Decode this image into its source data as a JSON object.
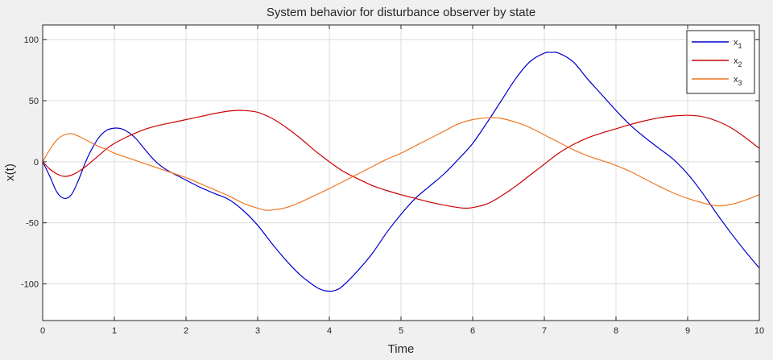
{
  "chart_data": {
    "type": "line",
    "title": "System behavior for disturbance observer by state",
    "xlabel": "Time",
    "ylabel": "x(t)",
    "xlim": [
      0,
      10
    ],
    "ylim": [
      -130,
      112
    ],
    "xticks": [
      0,
      1,
      2,
      3,
      4,
      5,
      6,
      7,
      8,
      9,
      10
    ],
    "yticks": [
      100,
      50,
      0,
      -50,
      -100
    ],
    "xtick_labels": [
      "0",
      "1",
      "2",
      "3",
      "4",
      "5",
      "6",
      "7",
      "8",
      "9",
      "10"
    ],
    "ytick_labels": [
      "100",
      "50",
      "0",
      "-50",
      "-100"
    ],
    "grid": true,
    "legend_position": "top-right",
    "series": [
      {
        "name": "x",
        "subscript": "1",
        "color": "#0000cc",
        "x": [
          0,
          0.1,
          0.2,
          0.3,
          0.4,
          0.5,
          0.6,
          0.7,
          0.8,
          0.9,
          1.0,
          1.1,
          1.2,
          1.3,
          1.4,
          1.5,
          1.6,
          1.7,
          1.8,
          1.9,
          2.0,
          2.2,
          2.4,
          2.6,
          2.8,
          3.0,
          3.2,
          3.4,
          3.6,
          3.8,
          3.9,
          4.0,
          4.1,
          4.2,
          4.4,
          4.6,
          4.8,
          5.0,
          5.2,
          5.4,
          5.6,
          5.8,
          6.0,
          6.2,
          6.4,
          6.6,
          6.8,
          7.0,
          7.1,
          7.2,
          7.4,
          7.6,
          7.8,
          8.0,
          8.2,
          8.4,
          8.6,
          8.8,
          9.0,
          9.2,
          9.4,
          9.6,
          9.8,
          10.0
        ],
        "y": [
          0,
          -12,
          -25,
          -30,
          -27,
          -15,
          0,
          12,
          21,
          26,
          27.5,
          27,
          24,
          19,
          12,
          5,
          -1,
          -5.5,
          -9,
          -12,
          -15,
          -21,
          -26,
          -31,
          -40,
          -52,
          -67,
          -81,
          -93,
          -102,
          -105,
          -106,
          -105,
          -101,
          -89,
          -75,
          -58,
          -43,
          -30,
          -20,
          -10,
          2,
          15,
          32,
          50,
          68,
          82,
          89,
          89.5,
          89,
          82,
          68,
          55,
          42,
          30,
          20,
          11,
          2,
          -10,
          -25,
          -42,
          -58,
          -73,
          -87
        ]
      },
      {
        "name": "x",
        "subscript": "2",
        "color": "#cc0000",
        "x": [
          0,
          0.1,
          0.2,
          0.3,
          0.4,
          0.5,
          0.6,
          0.7,
          0.8,
          0.9,
          1.0,
          1.2,
          1.4,
          1.6,
          1.8,
          2.0,
          2.2,
          2.4,
          2.6,
          2.7,
          2.8,
          3.0,
          3.2,
          3.4,
          3.6,
          3.8,
          4.0,
          4.2,
          4.4,
          4.6,
          4.8,
          5.0,
          5.2,
          5.4,
          5.6,
          5.8,
          5.9,
          6.0,
          6.2,
          6.4,
          6.6,
          6.8,
          7.0,
          7.2,
          7.4,
          7.6,
          7.8,
          8.0,
          8.2,
          8.4,
          8.6,
          8.8,
          9.0,
          9.2,
          9.4,
          9.6,
          9.8,
          10.0
        ],
        "y": [
          0,
          -6,
          -10,
          -12,
          -11,
          -8,
          -4,
          1,
          6,
          11,
          15,
          21,
          26,
          29.5,
          32,
          34.5,
          37,
          39.5,
          41.5,
          42,
          42,
          40.5,
          35.5,
          28,
          19,
          9,
          0,
          -8,
          -14,
          -19.5,
          -23.5,
          -27,
          -30,
          -33,
          -35.5,
          -37.5,
          -38,
          -37.5,
          -34.5,
          -28,
          -20,
          -11,
          -2,
          7,
          14,
          19.5,
          23.5,
          27,
          30.5,
          33.5,
          36,
          37.5,
          38,
          37,
          33.5,
          28,
          20,
          11
        ]
      },
      {
        "name": "x",
        "subscript": "3",
        "color": "#ee7722",
        "x": [
          0,
          0.1,
          0.2,
          0.3,
          0.4,
          0.5,
          0.6,
          0.7,
          0.8,
          0.9,
          1.0,
          1.2,
          1.4,
          1.6,
          1.8,
          2.0,
          2.2,
          2.4,
          2.6,
          2.8,
          3.0,
          3.1,
          3.2,
          3.4,
          3.6,
          3.8,
          4.0,
          4.2,
          4.4,
          4.6,
          4.8,
          5.0,
          5.2,
          5.4,
          5.6,
          5.8,
          6.0,
          6.2,
          6.3,
          6.4,
          6.6,
          6.8,
          7.0,
          7.2,
          7.4,
          7.6,
          7.8,
          8.0,
          8.2,
          8.4,
          8.6,
          8.8,
          9.0,
          9.2,
          9.4,
          9.6,
          9.8,
          10.0
        ],
        "y": [
          0,
          10,
          18,
          22,
          23,
          21,
          18,
          15,
          12,
          10,
          7,
          3,
          -1,
          -5,
          -9,
          -13,
          -18,
          -23,
          -28,
          -34,
          -38,
          -39.5,
          -39.5,
          -37.5,
          -33,
          -27.5,
          -22,
          -16,
          -10,
          -4,
          2,
          7,
          13,
          19,
          25,
          31,
          34.5,
          36,
          36,
          35.5,
          32.5,
          28,
          22,
          16,
          10,
          5,
          1,
          -3,
          -8,
          -14,
          -20,
          -25.5,
          -30,
          -33.5,
          -36,
          -35,
          -31.5,
          -27
        ]
      }
    ]
  }
}
